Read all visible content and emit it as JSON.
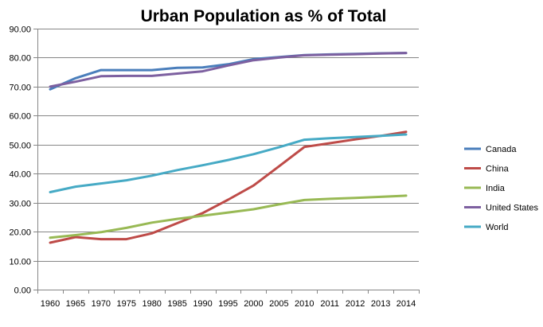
{
  "chart_data": {
    "type": "line",
    "title": "Urban Population as % of Total",
    "xlabel": "",
    "ylabel": "",
    "ylim": [
      0,
      90
    ],
    "y_ticks": [
      "0.00",
      "10.00",
      "20.00",
      "30.00",
      "40.00",
      "50.00",
      "60.00",
      "70.00",
      "80.00",
      "90.00"
    ],
    "grid": true,
    "legend_position": "right",
    "categories": [
      "1960",
      "1965",
      "1970",
      "1975",
      "1980",
      "1985",
      "1990",
      "1995",
      "2000",
      "2005",
      "2010",
      "2011",
      "2012",
      "2013",
      "2014"
    ],
    "series": [
      {
        "name": "Canada",
        "color": "#4A7EBB",
        "values": [
          69.1,
          72.9,
          75.7,
          75.7,
          75.7,
          76.5,
          76.6,
          77.7,
          79.5,
          80.2,
          80.9,
          81.1,
          81.3,
          81.5,
          81.6
        ]
      },
      {
        "name": "China",
        "color": "#BE4B48",
        "values": [
          16.2,
          18.1,
          17.4,
          17.4,
          19.4,
          22.9,
          26.4,
          31.0,
          35.9,
          42.5,
          49.2,
          50.5,
          51.8,
          53.0,
          54.4
        ]
      },
      {
        "name": "India",
        "color": "#98B954",
        "values": [
          17.9,
          18.8,
          19.8,
          21.3,
          23.1,
          24.4,
          25.5,
          26.6,
          27.7,
          29.4,
          30.9,
          31.3,
          31.6,
          32.0,
          32.4
        ]
      },
      {
        "name": "United States",
        "color": "#7D60A0",
        "values": [
          70.0,
          71.7,
          73.6,
          73.7,
          73.7,
          74.5,
          75.3,
          77.3,
          79.1,
          80.0,
          80.8,
          81.0,
          81.2,
          81.4,
          81.6
        ]
      },
      {
        "name": "World",
        "color": "#46AAC5",
        "values": [
          33.6,
          35.5,
          36.6,
          37.7,
          39.3,
          41.2,
          42.9,
          44.7,
          46.7,
          49.1,
          51.7,
          52.2,
          52.6,
          53.0,
          53.5
        ]
      }
    ]
  }
}
